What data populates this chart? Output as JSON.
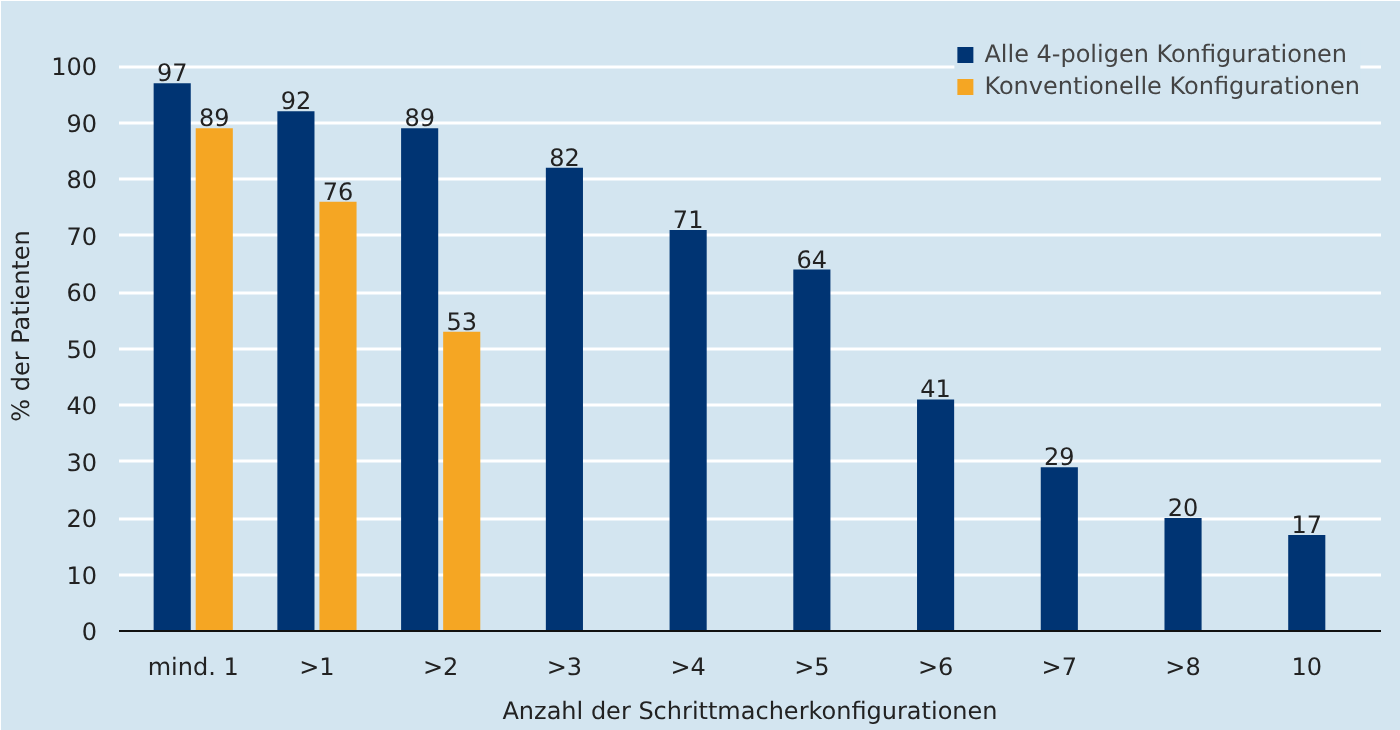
{
  "chart_data": {
    "type": "bar",
    "xlabel": "Anzahl der Schrittmacherkonfigurationen",
    "ylabel": "% der Patienten",
    "categories": [
      "mind. 1",
      ">1",
      ">2",
      ">3",
      ">4",
      ">5",
      ">6",
      ">7",
      ">8",
      "10"
    ],
    "series": [
      {
        "name": "Alle 4-poligen Konfigurationen",
        "color": "#003473",
        "values": [
          97,
          92,
          89,
          82,
          71,
          64,
          41,
          29,
          20,
          17
        ]
      },
      {
        "name": "Konventionelle Konfigurationen",
        "color": "#f5a623",
        "values": [
          89,
          76,
          53,
          null,
          null,
          null,
          null,
          null,
          null,
          null
        ]
      }
    ],
    "ylim": [
      0,
      100
    ],
    "yticks": [
      0,
      10,
      20,
      30,
      40,
      50,
      60,
      70,
      80,
      90,
      100
    ],
    "grid": "y",
    "legend": "top right",
    "data_labels": true
  }
}
